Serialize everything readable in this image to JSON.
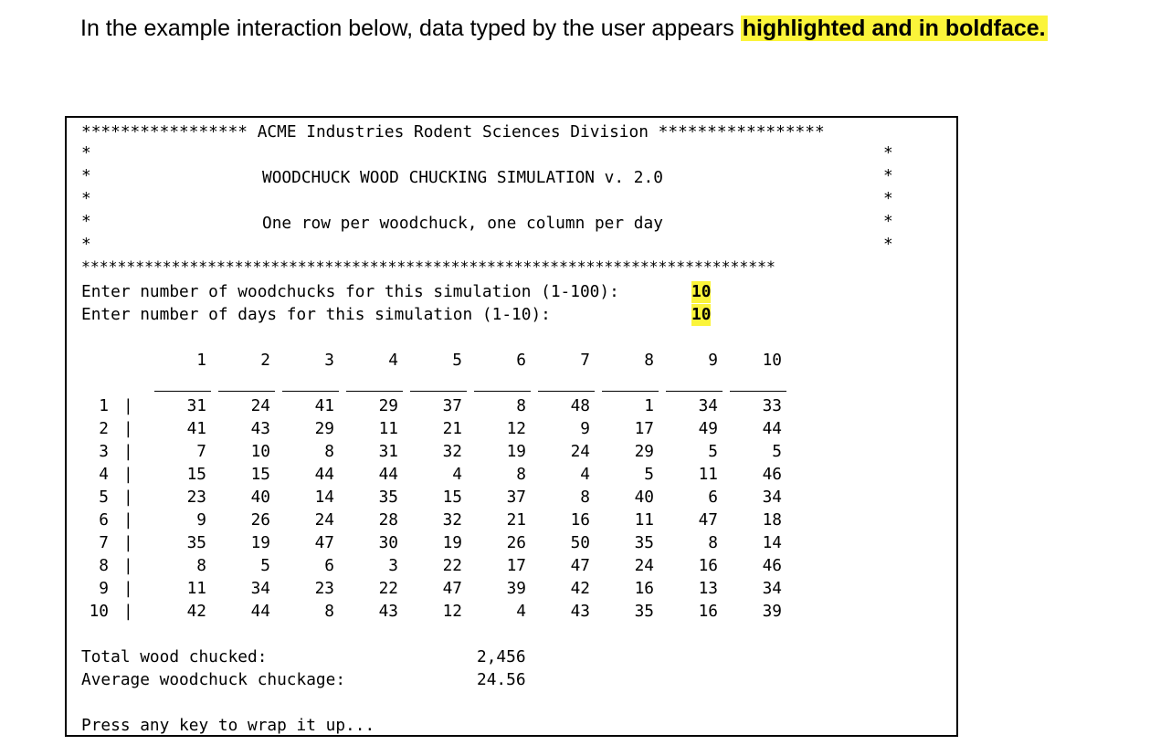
{
  "intro": {
    "text": "In the example interaction below, data typed by the user appears ",
    "highlight": "highlighted and in boldface."
  },
  "header": {
    "stars_left": "*****************",
    "title": "ACME Industries Rodent Sciences Division",
    "stars_right": "*****************",
    "program": "WOODCHUCK WOOD CHUCKING SIMULATION v. 2.0",
    "subtitle": "One row per woodchuck, one column per day",
    "bottom_stars": "*****************************************************************************"
  },
  "prompts": {
    "woodchucks_label": "Enter number of woodchucks for this simulation (1-100):",
    "woodchucks_value": "10",
    "days_label": "Enter number of days for this simulation (1-10):",
    "days_value": "10"
  },
  "table": {
    "columns": [
      "1",
      "2",
      "3",
      "4",
      "5",
      "6",
      "7",
      "8",
      "9",
      "10"
    ],
    "row_labels": [
      "1",
      "2",
      "3",
      "4",
      "5",
      "6",
      "7",
      "8",
      "9",
      "10"
    ],
    "rows": [
      [
        "31",
        "24",
        "41",
        "29",
        "37",
        "8",
        "48",
        "1",
        "34",
        "33"
      ],
      [
        "41",
        "43",
        "29",
        "11",
        "21",
        "12",
        "9",
        "17",
        "49",
        "44"
      ],
      [
        "7",
        "10",
        "8",
        "31",
        "32",
        "19",
        "24",
        "29",
        "5",
        "5"
      ],
      [
        "15",
        "15",
        "44",
        "44",
        "4",
        "8",
        "4",
        "5",
        "11",
        "46"
      ],
      [
        "23",
        "40",
        "14",
        "35",
        "15",
        "37",
        "8",
        "40",
        "6",
        "34"
      ],
      [
        "9",
        "26",
        "24",
        "28",
        "32",
        "21",
        "16",
        "11",
        "47",
        "18"
      ],
      [
        "35",
        "19",
        "47",
        "30",
        "19",
        "26",
        "50",
        "35",
        "8",
        "14"
      ],
      [
        "8",
        "5",
        "6",
        "3",
        "22",
        "17",
        "47",
        "24",
        "16",
        "46"
      ],
      [
        "11",
        "34",
        "23",
        "22",
        "47",
        "39",
        "42",
        "16",
        "13",
        "34"
      ],
      [
        "42",
        "44",
        "8",
        "43",
        "12",
        "4",
        "43",
        "35",
        "16",
        "39"
      ]
    ]
  },
  "summary": {
    "total_label": "Total wood chucked:",
    "total_value": "2,456",
    "average_label": "Average woodchuck chuckage:",
    "average_value": "24.56"
  },
  "footer": {
    "press_key": "Press any key to wrap it up..."
  }
}
